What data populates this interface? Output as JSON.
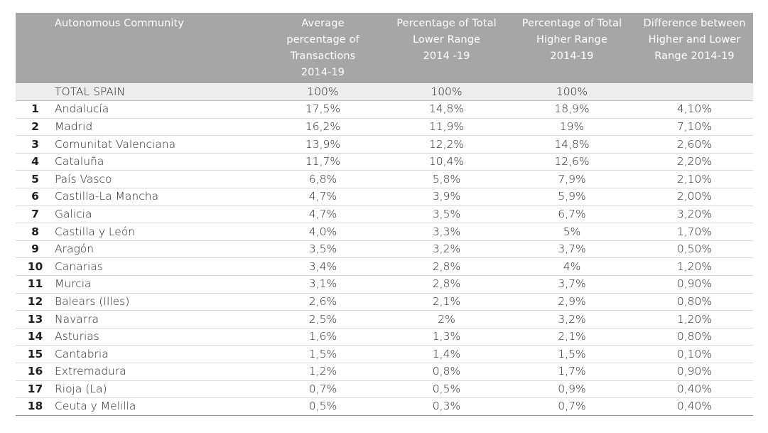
{
  "table": {
    "headers": {
      "rank": "",
      "community": "Autonomous Community",
      "avg_pct": [
        "Average",
        "percentage of",
        "Transactions",
        "2014-19"
      ],
      "lower_pct": [
        "Percentage of Total",
        "Lower Range",
        "2014 -19"
      ],
      "higher_pct": [
        "Percentage of Total",
        "Higher Range",
        "2014-19"
      ],
      "difference": [
        "Difference between",
        "Higher and Lower",
        "Range 2014-19"
      ]
    },
    "total": {
      "label": "TOTAL SPAIN",
      "avg": "100%",
      "lower": "100%",
      "higher": "100%",
      "diff": ""
    },
    "rows": [
      {
        "rank": "1",
        "name": "Andalucía",
        "avg": "17,5%",
        "lower": "14,8%",
        "higher": "18,9%",
        "diff": "4,10%"
      },
      {
        "rank": "2",
        "name": "Madrid",
        "avg": "16,2%",
        "lower": "11,9%",
        "higher": "19%",
        "diff": "7,10%"
      },
      {
        "rank": "3",
        "name": "Comunitat Valenciana",
        "avg": "13,9%",
        "lower": "12,2%",
        "higher": "14,8%",
        "diff": "2,60%"
      },
      {
        "rank": "4",
        "name": "Cataluña",
        "avg": "11,7%",
        "lower": "10,4%",
        "higher": "12,6%",
        "diff": "2,20%"
      },
      {
        "rank": "5",
        "name": "País Vasco",
        "avg": "6,8%",
        "lower": "5,8%",
        "higher": "7,9%",
        "diff": "2,10%"
      },
      {
        "rank": "6",
        "name": "Castilla-La Mancha",
        "avg": "4,7%",
        "lower": "3,9%",
        "higher": "5,9%",
        "diff": "2,00%"
      },
      {
        "rank": "7",
        "name": "Galicia",
        "avg": "4,7%",
        "lower": "3,5%",
        "higher": "6,7%",
        "diff": "3,20%"
      },
      {
        "rank": "8",
        "name": "Castilla y León",
        "avg": "4,0%",
        "lower": "3,3%",
        "higher": "5%",
        "diff": "1,70%"
      },
      {
        "rank": "9",
        "name": "Aragón",
        "avg": "3,5%",
        "lower": "3,2%",
        "higher": "3,7%",
        "diff": "0,50%"
      },
      {
        "rank": "10",
        "name": "Canarias",
        "avg": "3,4%",
        "lower": "2,8%",
        "higher": "4%",
        "diff": "1,20%"
      },
      {
        "rank": "11",
        "name": "Murcia",
        "avg": "3,1%",
        "lower": "2,8%",
        "higher": "3,7%",
        "diff": "0,90%"
      },
      {
        "rank": "12",
        "name": "Balears (Illes)",
        "avg": "2,6%",
        "lower": "2,1%",
        "higher": "2,9%",
        "diff": "0,80%"
      },
      {
        "rank": "13",
        "name": "Navarra",
        "avg": "2,5%",
        "lower": "2%",
        "higher": "3,2%",
        "diff": "1,20%"
      },
      {
        "rank": "14",
        "name": "Asturias",
        "avg": "1,6%",
        "lower": "1,3%",
        "higher": "2,1%",
        "diff": "0,80%"
      },
      {
        "rank": "15",
        "name": "Cantabria",
        "avg": "1,5%",
        "lower": "1,4%",
        "higher": "1,5%",
        "diff": "0,10%"
      },
      {
        "rank": "16",
        "name": "Extremadura",
        "avg": "1,2%",
        "lower": "0,8%",
        "higher": "1,7%",
        "diff": "0,90%"
      },
      {
        "rank": "17",
        "name": "Rioja (La)",
        "avg": "0,7%",
        "lower": "0,5%",
        "higher": "0,9%",
        "diff": "0,40%"
      },
      {
        "rank": "18",
        "name": "Ceuta y Melilla",
        "avg": "0,5%",
        "lower": "0,3%",
        "higher": "0,7%",
        "diff": "0,40%"
      }
    ],
    "colors": {
      "header_bg": "#a6a6a6",
      "header_text": "#ffffff",
      "total_row_bg": "#ededed",
      "row_divider": "#d9d9d9"
    }
  }
}
